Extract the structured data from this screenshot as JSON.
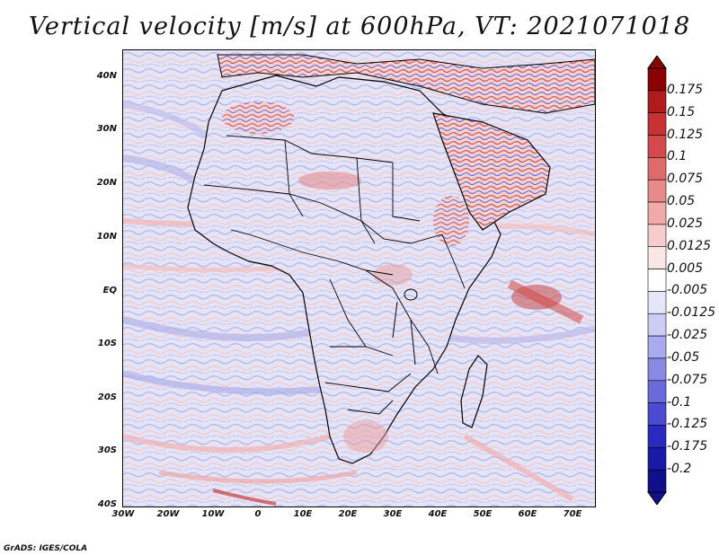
{
  "title": "Vertical velocity [m/s] at 600hPa, VT: 2021071018",
  "credit": "GrADS: IGES/COLA",
  "lat_labels": [
    "40N",
    "30N",
    "20N",
    "10N",
    "EQ",
    "10S",
    "20S",
    "30S",
    "40S"
  ],
  "lon_labels": [
    "30W",
    "20W",
    "10W",
    "0",
    "10E",
    "20E",
    "30E",
    "40E",
    "50E",
    "60E",
    "70E"
  ],
  "colorbar": {
    "labels": [
      "0.175",
      "0.15",
      "0.125",
      "0.1",
      "0.075",
      "0.05",
      "0.025",
      "0.0125",
      "0.005",
      "-0.005",
      "-0.0125",
      "-0.025",
      "-0.05",
      "-0.075",
      "-0.1",
      "-0.125",
      "-0.175",
      "-0.2"
    ],
    "colors": [
      "#8b0000",
      "#b01c1c",
      "#c83232",
      "#d44a4a",
      "#de6a6a",
      "#e88a8a",
      "#f0aaaa",
      "#f6cccc",
      "#fbe6e6",
      "#ffffff",
      "#e6e6fb",
      "#ccccf5",
      "#aaaaee",
      "#8a8ae6",
      "#6a6adc",
      "#4a4ad2",
      "#2a2ac0",
      "#1a1aa8",
      "#10108c"
    ]
  },
  "map_info": {
    "variable": "vertical velocity",
    "level": "600hPa",
    "lat_range": [
      -40,
      45
    ],
    "lon_range": [
      -30,
      75
    ]
  }
}
